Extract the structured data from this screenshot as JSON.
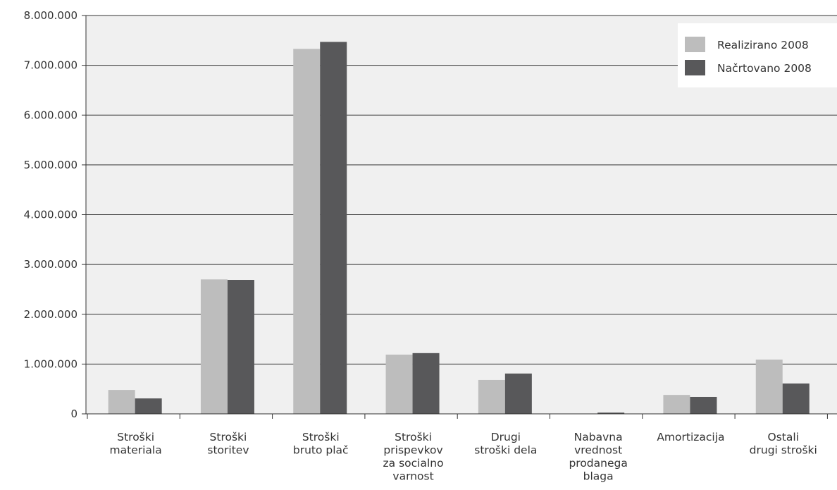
{
  "chart_data": {
    "type": "bar",
    "categories": [
      [
        "Stroški",
        "materiala"
      ],
      [
        "Stroški",
        "storitev"
      ],
      [
        "Stroški",
        "bruto plač"
      ],
      [
        "Stroški",
        "prispevkov",
        "za socialno",
        "varnost"
      ],
      [
        "Drugi",
        "stroški dela"
      ],
      [
        "Nabavna",
        "vrednost",
        "prodanega",
        "blaga"
      ],
      [
        "Amortizacija"
      ],
      [
        "Ostali",
        "drugi stroški"
      ]
    ],
    "series": [
      {
        "name": "Realizirano 2008",
        "color": "#bdbdbd",
        "values": [
          480000,
          2700000,
          7330000,
          1190000,
          680000,
          0,
          380000,
          1090000
        ]
      },
      {
        "name": "Načrtovano 2008",
        "color": "#58585a",
        "values": [
          310000,
          2690000,
          7470000,
          1220000,
          810000,
          25000,
          340000,
          610000
        ]
      }
    ],
    "ylim": [
      0,
      8000000
    ],
    "yticks": [
      0,
      1000000,
      2000000,
      3000000,
      4000000,
      5000000,
      6000000,
      7000000,
      8000000
    ],
    "ytick_labels": [
      "0",
      "1.000.000",
      "2.000.000",
      "3.000.000",
      "4.000.000",
      "5.000.000",
      "6.000.000",
      "7.000.000",
      "8.000.000"
    ],
    "grid": true,
    "legend_position": "top-right",
    "plot_background": "#f0f0f0"
  }
}
